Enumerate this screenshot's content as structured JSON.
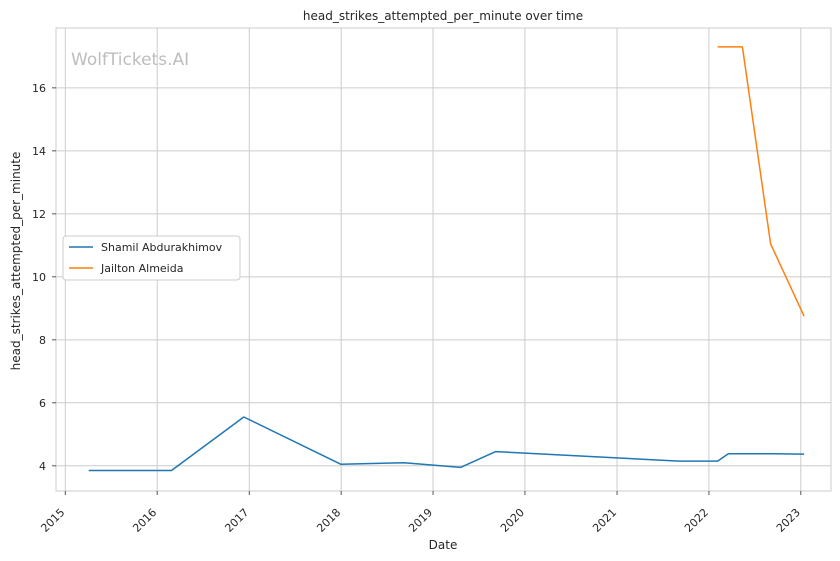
{
  "chart_data": {
    "type": "line",
    "title": "head_strikes_attempted_per_minute over time",
    "xlabel": "Date",
    "ylabel": "head_strikes_attempted_per_minute",
    "watermark": "WolfTickets.AI",
    "x_ticks": [
      "2015",
      "2016",
      "2017",
      "2018",
      "2019",
      "2020",
      "2021",
      "2022",
      "2023"
    ],
    "y_ticks": [
      4,
      6,
      8,
      10,
      12,
      14,
      16
    ],
    "xlim": [
      "2014-11-25",
      "2023-05-01"
    ],
    "ylim": [
      3.2,
      17.9
    ],
    "grid": true,
    "legend_position": "center-left",
    "series": [
      {
        "name": "Shamil Abdurakhimov",
        "color": "#1f77b4",
        "points": [
          [
            "2015-04-04",
            3.85
          ],
          [
            "2016-02-27",
            3.85
          ],
          [
            "2016-12-10",
            5.55
          ],
          [
            "2017-12-30",
            4.05
          ],
          [
            "2018-09-08",
            4.1
          ],
          [
            "2019-04-20",
            3.95
          ],
          [
            "2019-09-07",
            4.45
          ],
          [
            "2021-09-04",
            4.15
          ],
          [
            "2022-02-05",
            4.15
          ],
          [
            "2022-03-19",
            4.38
          ],
          [
            "2022-09-03",
            4.38
          ],
          [
            "2023-01-14",
            4.37
          ]
        ]
      },
      {
        "name": "Jailton Almeida",
        "color": "#ff7f0e",
        "points": [
          [
            "2022-02-05",
            17.3
          ],
          [
            "2022-05-14",
            17.3
          ],
          [
            "2022-09-03",
            11.05
          ],
          [
            "2023-01-14",
            8.75
          ]
        ]
      }
    ]
  }
}
